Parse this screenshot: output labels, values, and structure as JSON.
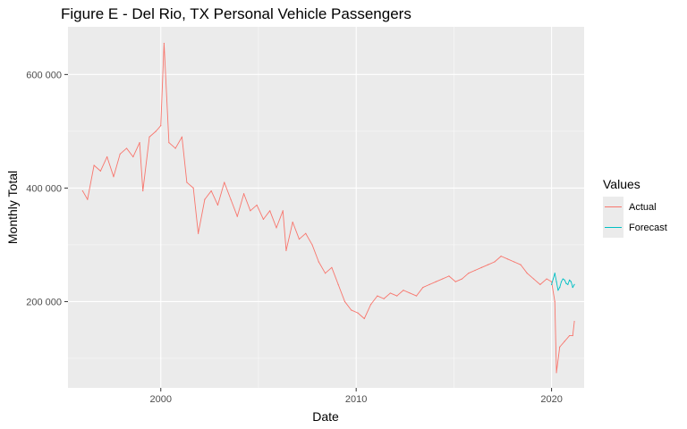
{
  "chart_data": {
    "type": "line",
    "title": "Figure E - Del Rio, TX Personal Vehicle Passengers",
    "xlabel": "Date",
    "ylabel": "Monthly Total",
    "x_range": [
      "1995-04-01",
      "2021-09-01"
    ],
    "ylim": [
      48000,
      684000
    ],
    "x_ticks": [
      {
        "value": "2000-01-01",
        "label": "2000"
      },
      {
        "value": "2010-01-01",
        "label": "2010"
      },
      {
        "value": "2020-01-01",
        "label": "2020"
      }
    ],
    "y_ticks": [
      {
        "value": 200000,
        "label": "200 000"
      },
      {
        "value": 400000,
        "label": "400 000"
      },
      {
        "value": 600000,
        "label": "600 000"
      }
    ],
    "grid": true,
    "legend": {
      "title": "Values",
      "position": "right"
    },
    "series": [
      {
        "name": "Actual",
        "color": "#F8766D",
        "points": [
          [
            "1996-01",
            395000
          ],
          [
            "1996-04",
            380000
          ],
          [
            "1996-08",
            440000
          ],
          [
            "1996-12",
            430000
          ],
          [
            "1997-04",
            455000
          ],
          [
            "1997-08",
            420000
          ],
          [
            "1997-12",
            460000
          ],
          [
            "1998-04",
            470000
          ],
          [
            "1998-08",
            455000
          ],
          [
            "1998-12",
            480000
          ],
          [
            "1999-02",
            395000
          ],
          [
            "1999-06",
            490000
          ],
          [
            "1999-10",
            500000
          ],
          [
            "2000-01",
            510000
          ],
          [
            "2000-03",
            655000
          ],
          [
            "2000-06",
            480000
          ],
          [
            "2000-10",
            470000
          ],
          [
            "2001-02",
            490000
          ],
          [
            "2001-05",
            410000
          ],
          [
            "2001-09",
            400000
          ],
          [
            "2001-12",
            320000
          ],
          [
            "2002-04",
            380000
          ],
          [
            "2002-08",
            395000
          ],
          [
            "2002-12",
            370000
          ],
          [
            "2003-04",
            410000
          ],
          [
            "2003-08",
            380000
          ],
          [
            "2003-12",
            350000
          ],
          [
            "2004-04",
            390000
          ],
          [
            "2004-08",
            360000
          ],
          [
            "2004-12",
            370000
          ],
          [
            "2005-04",
            345000
          ],
          [
            "2005-08",
            360000
          ],
          [
            "2005-12",
            330000
          ],
          [
            "2006-04",
            360000
          ],
          [
            "2006-06",
            290000
          ],
          [
            "2006-10",
            340000
          ],
          [
            "2007-02",
            310000
          ],
          [
            "2007-06",
            320000
          ],
          [
            "2007-10",
            300000
          ],
          [
            "2008-02",
            270000
          ],
          [
            "2008-06",
            250000
          ],
          [
            "2008-10",
            260000
          ],
          [
            "2009-02",
            230000
          ],
          [
            "2009-06",
            200000
          ],
          [
            "2009-10",
            185000
          ],
          [
            "2010-02",
            180000
          ],
          [
            "2010-06",
            170000
          ],
          [
            "2010-10",
            195000
          ],
          [
            "2011-02",
            210000
          ],
          [
            "2011-06",
            205000
          ],
          [
            "2011-10",
            215000
          ],
          [
            "2012-02",
            210000
          ],
          [
            "2012-06",
            220000
          ],
          [
            "2012-10",
            215000
          ],
          [
            "2013-02",
            210000
          ],
          [
            "2013-06",
            225000
          ],
          [
            "2013-10",
            230000
          ],
          [
            "2014-02",
            235000
          ],
          [
            "2014-06",
            240000
          ],
          [
            "2014-10",
            245000
          ],
          [
            "2015-02",
            235000
          ],
          [
            "2015-06",
            240000
          ],
          [
            "2015-10",
            250000
          ],
          [
            "2016-02",
            255000
          ],
          [
            "2016-06",
            260000
          ],
          [
            "2016-10",
            265000
          ],
          [
            "2017-02",
            270000
          ],
          [
            "2017-06",
            280000
          ],
          [
            "2017-10",
            275000
          ],
          [
            "2018-02",
            270000
          ],
          [
            "2018-06",
            265000
          ],
          [
            "2018-10",
            250000
          ],
          [
            "2019-02",
            240000
          ],
          [
            "2019-06",
            230000
          ],
          [
            "2019-10",
            240000
          ],
          [
            "2020-01",
            235000
          ],
          [
            "2020-03",
            200000
          ],
          [
            "2020-04",
            75000
          ],
          [
            "2020-06",
            120000
          ],
          [
            "2020-09",
            130000
          ],
          [
            "2020-12",
            140000
          ],
          [
            "2021-02",
            140000
          ],
          [
            "2021-03",
            165000
          ]
        ]
      },
      {
        "name": "Forecast",
        "color": "#00BFC4",
        "points": [
          [
            "2020-01",
            230000
          ],
          [
            "2020-02",
            240000
          ],
          [
            "2020-03",
            250000
          ],
          [
            "2020-04",
            235000
          ],
          [
            "2020-05",
            220000
          ],
          [
            "2020-06",
            225000
          ],
          [
            "2020-07",
            235000
          ],
          [
            "2020-08",
            240000
          ],
          [
            "2020-09",
            238000
          ],
          [
            "2020-10",
            232000
          ],
          [
            "2020-11",
            230000
          ],
          [
            "2020-12",
            238000
          ],
          [
            "2021-01",
            235000
          ],
          [
            "2021-02",
            225000
          ],
          [
            "2021-03",
            230000
          ]
        ]
      }
    ]
  }
}
